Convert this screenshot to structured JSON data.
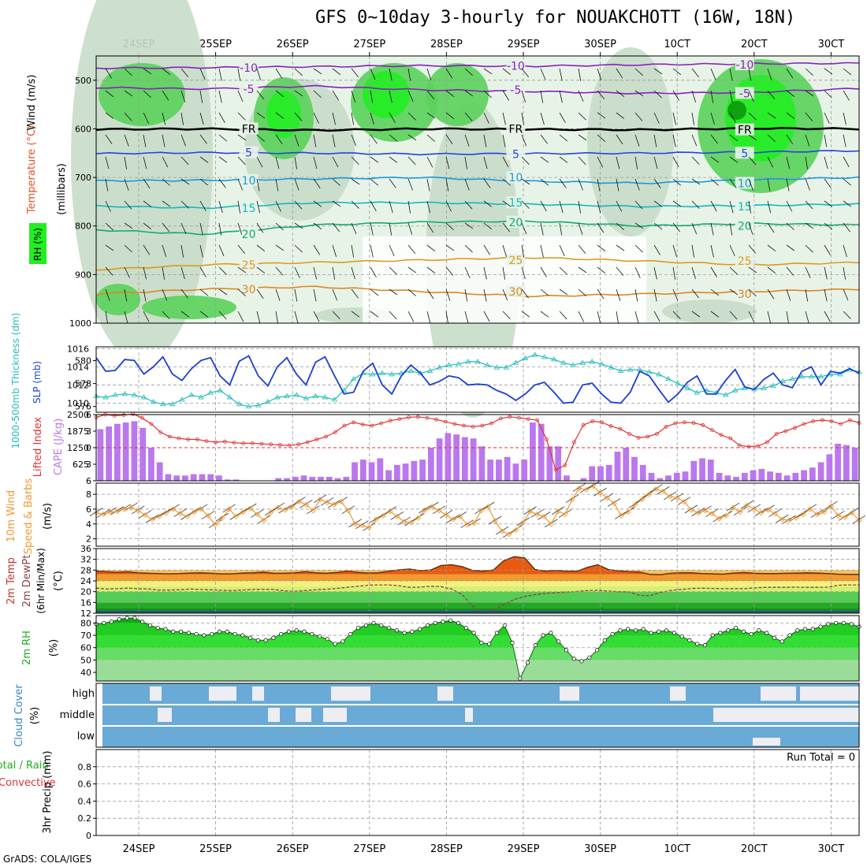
{
  "title": "GFS 0~10day 3-hourly for NOUAKCHOTT (16W, 18N)",
  "footer": "GrADS: COLA/IGES",
  "date_labels": [
    "24SEP",
    "25SEP",
    "26SEP",
    "27SEP",
    "28SEP",
    "29SEP",
    "30SEP",
    "1OCT",
    "2OCT",
    "3OCT"
  ],
  "date_labels_display": [
    "24SEP",
    "25SEP",
    "26SEP",
    "27SEP",
    "28SEP",
    "29SEP",
    "30SEP",
    "10CT",
    "20CT",
    "30CT"
  ],
  "colors": {
    "rh_light": "#e8f3e8",
    "rh_mid": "#c8dcc8",
    "rh_gray": "#a9bfa9",
    "rh_green": "#5ad25a",
    "rh_bright": "#22ee22",
    "rh_dark": "#0a9a0a",
    "slp": "#1a3fd0",
    "thickness": "#22bbbb",
    "lifted": "#dd3333",
    "cape": "#bb77ee",
    "wind_speed": "#ee9933",
    "temp_fill": "#f09a30",
    "temp_max": "#e85a10",
    "dewpt": "#884444",
    "cloud": "#6aaad6",
    "cloud_gap": "#ededf2",
    "rh2m_dark": "#11aa11",
    "rh2m_mid": "#33dd33",
    "rh2m_light": "#99dd99"
  },
  "chart_data": [
    {
      "panel": "upper-air",
      "type": "heatmap",
      "title": "RH (%) / Temperature (°C) / Wind (m/s)",
      "ylabel": "(millibars)",
      "legend_labels": [
        "RH (%)",
        "Temperature (°C)",
        "Wind (m/s)"
      ],
      "ylim": [
        1000,
        450
      ],
      "yticks": [
        500,
        600,
        700,
        800,
        900,
        1000
      ],
      "isotherms": [
        {
          "label": "-10",
          "color": "#8a1fbf",
          "levels": [
            475,
            474,
            472,
            470,
            471,
            468,
            466,
            465
          ]
        },
        {
          "label": "-5",
          "color": "#8a1fbf",
          "levels": [
            515,
            518,
            512,
            520,
            523,
            527,
            525,
            517
          ]
        },
        {
          "label": "FR",
          "color": "#000000",
          "levels": [
            601,
            600,
            603,
            600,
            601,
            602,
            599,
            600
          ]
        },
        {
          "label": "5",
          "color": "#2244dd",
          "levels": [
            651,
            649,
            650,
            652,
            651,
            650,
            648,
            645
          ]
        },
        {
          "label": "10",
          "color": "#1a99dd",
          "levels": [
            707,
            706,
            703,
            700,
            708,
            712,
            705,
            700
          ]
        },
        {
          "label": "15",
          "color": "#11bbbb",
          "levels": [
            759,
            763,
            752,
            752,
            755,
            760,
            758,
            755
          ]
        },
        {
          "label": "20",
          "color": "#11aa77",
          "levels": [
            808,
            817,
            798,
            792,
            790,
            800,
            795,
            798
          ]
        },
        {
          "label": "25",
          "color": "#dd9922",
          "levels": [
            890,
            880,
            875,
            870,
            865,
            872,
            880,
            875
          ]
        },
        {
          "label": "30",
          "color": "#dd8822",
          "levels": [
            940,
            930,
            925,
            935,
            945,
            940,
            935,
            930
          ]
        }
      ],
      "rh_levels": [
        "10",
        "30",
        "50",
        "70",
        "90"
      ]
    },
    {
      "panel": "slp-thickness",
      "type": "line",
      "ylabel_left": "1000-500mb Thickness (dm)",
      "ylabel_right": "SLP (mb)",
      "yticks_left": [
        576,
        578,
        580
      ],
      "yticks_right": [
        1010,
        1012,
        1014,
        1016
      ],
      "series": [
        {
          "name": "SLP (mb)",
          "values": [
            1015.0,
            1013.5,
            1013.6,
            1014.8,
            1014.7,
            1013.2,
            1014.0,
            1015.1,
            1013.2,
            1012.5,
            1013.8,
            1014.7,
            1015.0,
            1013.0,
            1012.0,
            1014.6,
            1015.2,
            1013.0,
            1011.9,
            1014.0,
            1015.0,
            1013.2,
            1012.0,
            1014.5,
            1015.1,
            1013.0,
            1011.0,
            1011.2,
            1013.5,
            1014.4,
            1012.0,
            1011.0,
            1013.0,
            1014.2,
            1013.3,
            1012.0,
            1012.4,
            1013.0,
            1012.8,
            1012.0,
            1012.1,
            1012.0,
            1011.4,
            1011.0,
            1010.3,
            1011.0,
            1012.0,
            1012.3,
            1011.2,
            1010.0,
            1010.1,
            1012.0,
            1012.2,
            1011.0,
            1010.1,
            1010.0,
            1011.2,
            1013.5,
            1013.0,
            1011.5,
            1010.1,
            1011.0,
            1012.3,
            1013.0,
            1011.0,
            1011.0,
            1012.5,
            1013.7,
            1011.8,
            1011.5,
            1012.6,
            1013.3,
            1012.0,
            1011.7,
            1013.5,
            1014.0,
            1012.0,
            1013.5,
            1013.3,
            1013.8,
            1013.3
          ]
        },
        {
          "name": "Thickness (dm)",
          "values": [
            576.9,
            576.8,
            577.0,
            577.1,
            577.0,
            576.8,
            576.4,
            576.2,
            576.2,
            576.6,
            577.0,
            576.8,
            577.2,
            577.4,
            576.8,
            576.2,
            576.0,
            576.1,
            576.4,
            576.8,
            576.9,
            577.0,
            576.7,
            576.9,
            576.8,
            576.6,
            577.4,
            578.4,
            578.9,
            578.8,
            578.9,
            578.8,
            578.9,
            579.1,
            578.9,
            579.1,
            579.4,
            579.6,
            579.7,
            579.9,
            579.9,
            579.6,
            579.4,
            579.4,
            579.8,
            580.2,
            580.5,
            580.3,
            580.1,
            579.8,
            579.6,
            579.8,
            579.9,
            579.7,
            579.4,
            579.1,
            579.2,
            579.2,
            579.0,
            578.8,
            578.4,
            578.0,
            577.6,
            577.2,
            577.4,
            577.2,
            577.0,
            577.4,
            577.6,
            577.5,
            577.6,
            577.8,
            578.2,
            578.4,
            578.6,
            578.6,
            578.6,
            578.8,
            578.8,
            579.2,
            579.0
          ]
        }
      ]
    },
    {
      "panel": "lifted-cape",
      "type": "bar",
      "ylabel_left": "Lifted Index",
      "ylabel_right": "CAPE (J/kg)",
      "yticks_left": [
        -6,
        -3,
        0,
        3,
        6
      ],
      "yticks_right": [
        625,
        1250,
        1875,
        2500
      ],
      "series": [
        {
          "name": "CAPE (J/kg)",
          "values": [
            1950,
            2050,
            2150,
            2200,
            2250,
            2000,
            1250,
            700,
            250,
            200,
            200,
            250,
            250,
            250,
            200,
            50,
            50,
            0,
            0,
            0,
            0,
            100,
            100,
            150,
            200,
            150,
            150,
            150,
            100,
            150,
            700,
            800,
            700,
            850,
            400,
            600,
            650,
            750,
            800,
            1250,
            1600,
            1800,
            1750,
            1650,
            1600,
            1300,
            800,
            800,
            900,
            650,
            800,
            2200,
            2150,
            1300,
            1300,
            200,
            0,
            100,
            550,
            550,
            600,
            1100,
            1250,
            900,
            600,
            300,
            100,
            200,
            300,
            350,
            750,
            850,
            800,
            300,
            200,
            150,
            300,
            400,
            450,
            350,
            300,
            200,
            300,
            400,
            500,
            700,
            1000,
            1400,
            1350,
            1250
          ]
        },
        {
          "name": "Lifted Index",
          "values": [
            -5.5,
            -6.0,
            -5.8,
            -5.9,
            -6.1,
            -5.4,
            -4.3,
            -2.8,
            -2.0,
            -1.7,
            -1.5,
            -1.5,
            -1.2,
            -1.0,
            -1.1,
            -0.9,
            -0.8,
            -0.8,
            -0.7,
            -0.6,
            -0.5,
            -0.4,
            -0.6,
            -1.0,
            -1.5,
            -2.0,
            -2.8,
            -4.0,
            -4.6,
            -4.2,
            -4.0,
            -4.4,
            -4.9,
            -5.2,
            -5.5,
            -5.6,
            -5.4,
            -5.1,
            -4.7,
            -4.3,
            -4.0,
            -3.8,
            -4.0,
            -4.4,
            -5.3,
            -5.6,
            -5.4,
            -5.2,
            -5.0,
            -1.5,
            4.0,
            3.2,
            -1.0,
            -4.1,
            -4.8,
            -4.6,
            -3.9,
            -3.4,
            -2.5,
            -1.8,
            -2.0,
            -2.5,
            -3.8,
            -4.4,
            -4.6,
            -4.5,
            -4.1,
            -3.2,
            -2.3,
            -1.7,
            -0.4,
            -0.2,
            -0.3,
            -1.0,
            -2.5,
            -3.0,
            -3.6,
            -4.3,
            -4.8,
            -5.0,
            -4.8,
            -4.3,
            -5.0,
            -4.5
          ]
        }
      ]
    },
    {
      "panel": "wind10m",
      "type": "line",
      "ylabel": "10m Wind Speed & Barbs (m/s)",
      "yticks": [
        2,
        4,
        6,
        8
      ],
      "ylim": [
        1,
        9.5
      ],
      "series": [
        {
          "name": "10m Wind Speed (m/s)",
          "values": [
            5.5,
            5.3,
            5.6,
            5.7,
            6.0,
            6.2,
            5.8,
            5.2,
            4.6,
            5.0,
            5.5,
            6.0,
            5.4,
            5.0,
            5.6,
            6.0,
            5.1,
            3.9,
            4.8,
            6.0,
            5.0,
            5.6,
            6.1,
            5.3,
            4.5,
            5.6,
            6.2,
            5.9,
            6.3,
            7.0,
            6.6,
            5.8,
            7.3,
            6.9,
            6.6,
            7.0,
            5.8,
            4.0,
            3.8,
            3.5,
            4.6,
            5.1,
            5.7,
            5.0,
            4.3,
            4.2,
            4.8,
            5.9,
            6.3,
            5.8,
            5.2,
            4.6,
            5.0,
            3.9,
            4.1,
            5.8,
            6.3,
            4.4,
            3.0,
            2.6,
            3.2,
            4.2,
            5.7,
            5.3,
            5.0,
            4.0,
            5.7,
            5.3,
            7.3,
            8.8,
            8.6,
            9.1,
            8.2,
            7.5,
            6.8,
            5.1,
            5.6,
            6.6,
            7.3,
            8.0,
            8.7,
            8.4,
            7.7,
            7.5,
            7.0,
            5.9,
            5.5,
            5.8,
            5.4,
            4.7,
            5.1,
            6.2,
            5.6,
            6.5,
            6.0,
            5.5,
            5.9,
            5.4,
            4.6,
            4.5,
            4.8,
            5.3,
            6.0,
            5.3,
            5.6,
            6.4,
            5.1,
            4.9,
            5.5,
            4.5
          ]
        }
      ]
    },
    {
      "panel": "temp2m",
      "type": "area",
      "ylabel": "2m Temp / 2m DewPt (6hr Min/Max) (°C)",
      "yticks": [
        12,
        16,
        20,
        24,
        28,
        32,
        36
      ],
      "ylim": [
        12,
        36
      ],
      "series": [
        {
          "name": "2m Temp (°C)",
          "values": [
            27.6,
            27.4,
            27.2,
            27.4,
            27.0,
            26.8,
            26.7,
            26.6,
            26.7,
            26.9,
            27.0,
            26.8,
            26.6,
            26.6,
            26.9,
            27.0,
            27.3,
            26.8,
            26.8,
            27.0,
            27.4,
            27.0,
            26.8,
            27.1,
            27.6,
            27.2,
            26.9,
            27.0,
            27.6,
            28.1,
            28.4,
            27.8,
            28.0,
            29.7,
            30.0,
            29.3,
            27.9,
            27.6,
            28.0,
            31.5,
            33.0,
            32.5,
            28.2,
            27.6,
            27.9,
            27.5,
            27.5,
            29.0,
            30.0,
            28.2,
            27.7,
            27.4,
            27.3,
            26.4,
            26.3,
            26.8,
            27.0,
            27.0,
            26.7,
            26.6,
            26.5,
            26.9,
            27.1,
            26.8,
            26.7,
            26.7,
            26.8,
            26.9,
            27.0,
            26.9,
            26.7,
            26.5,
            26.4,
            26.4
          ]
        },
        {
          "name": "2m DewPt (°C)",
          "values": [
            21.3,
            21.0,
            21.1,
            21.3,
            21.1,
            21.0,
            20.6,
            20.6,
            20.7,
            21.0,
            20.8,
            20.7,
            20.5,
            20.4,
            20.6,
            20.8,
            20.9,
            20.8,
            20.3,
            20.1,
            20.4,
            20.7,
            20.9,
            21.2,
            21.6,
            22.0,
            22.4,
            22.5,
            22.5,
            22.2,
            21.6,
            21.7,
            22.0,
            21.9,
            21.0,
            19.0,
            14.6,
            12.6,
            13.2,
            15.2,
            17.1,
            18.2,
            18.9,
            19.4,
            19.6,
            19.9,
            20.1,
            20.4,
            20.5,
            20.2,
            20.0,
            19.9,
            18.6,
            18.5,
            19.7,
            20.5,
            20.8,
            21.2,
            21.3,
            21.2,
            21.1,
            21.1,
            21.1,
            21.4,
            21.6,
            21.6,
            21.6,
            21.7,
            21.6,
            21.6,
            21.7,
            22.4,
            22.5,
            22.5
          ]
        }
      ]
    },
    {
      "panel": "rh2m",
      "type": "area",
      "ylabel": "2m RH (%)",
      "yticks": [
        40,
        50,
        60,
        70,
        80
      ],
      "ylim": [
        33,
        86
      ],
      "series": [
        {
          "name": "2m RH (%)",
          "values": [
            79,
            80,
            81,
            83,
            84,
            84,
            81,
            78,
            76,
            75,
            73,
            73,
            72,
            71,
            70,
            71,
            73,
            73,
            71,
            70,
            68,
            66,
            66,
            68,
            71,
            73,
            74,
            73,
            71,
            69,
            67,
            63,
            65,
            71,
            76,
            78,
            80,
            78,
            76,
            74,
            72,
            73,
            75,
            78,
            80,
            81,
            82,
            80,
            76,
            72,
            64,
            63,
            72,
            78,
            64,
            35,
            48,
            62,
            70,
            72,
            65,
            58,
            51,
            49,
            52,
            58,
            66,
            71,
            74,
            75,
            74,
            75,
            72,
            73,
            74,
            72,
            69,
            66,
            63,
            62,
            70,
            72,
            74,
            76,
            73,
            71,
            74,
            72,
            68,
            65,
            70,
            74,
            75,
            75,
            77,
            79,
            80,
            80,
            79,
            77
          ]
        }
      ]
    },
    {
      "panel": "cloud",
      "type": "bar",
      "ylabel": "Cloud Cover (%)",
      "categories": [
        "high",
        "middle",
        "low"
      ]
    },
    {
      "panel": "precip",
      "type": "bar",
      "ylabel": "3hr Precip (mm)",
      "legend_labels": [
        "Total / Rain",
        "Convective"
      ],
      "yticks": [
        0,
        0.2,
        0.4,
        0.6,
        0.8
      ],
      "ylim": [
        0,
        1
      ],
      "annotation": "Run Total = 0",
      "values": []
    }
  ]
}
